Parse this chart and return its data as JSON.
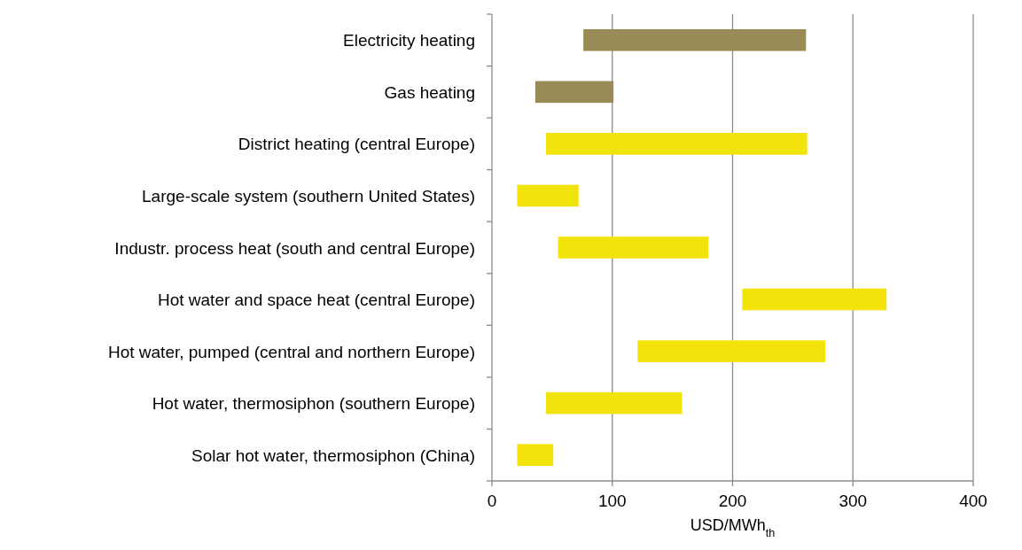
{
  "chart_data": {
    "type": "bar",
    "orientation": "horizontal",
    "xlabel": "USD/MWh$_{th}$",
    "categories": [
      "Electricity heating",
      "Gas heating",
      "District heating (central Europe)",
      "Large-scale system (southern United States)",
      "Industr. process heat (south and central Europe)",
      "Hot water and space heat (central Europe)",
      "Hot water, pumped (central and northern Europe)",
      "Hot water, thermosiphon (southern Europe)",
      "Solar hot water, thermosiphon (China)"
    ],
    "base": [
      76,
      36,
      45,
      21,
      55,
      208,
      121,
      45,
      21
    ],
    "values": [
      185,
      65,
      217,
      51,
      125,
      120,
      156,
      113,
      30
    ],
    "colors": [
      "#998b55",
      "#998b55",
      "#f2e30a",
      "#f2e30a",
      "#f2e30a",
      "#f2e30a",
      "#f2e30a",
      "#f2e30a",
      "#f2e30a"
    ],
    "xlim": [
      0,
      400
    ],
    "xticks": [
      0,
      100,
      200,
      300,
      400
    ],
    "grid": "x"
  }
}
